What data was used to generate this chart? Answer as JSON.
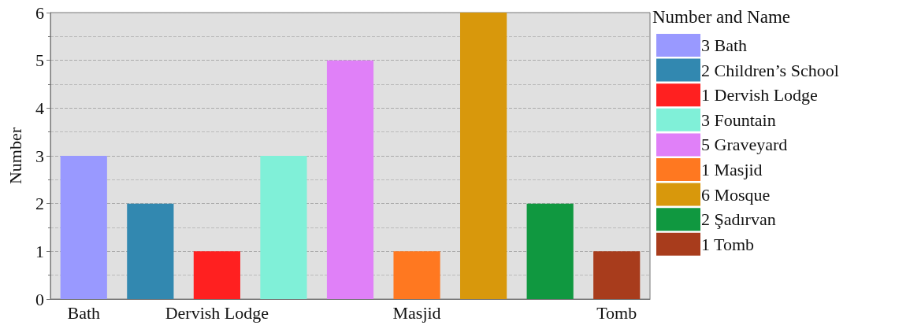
{
  "chart_data": {
    "type": "bar",
    "ylabel": "Number",
    "legend_title": "Number and Name",
    "categories": [
      "Bath",
      null,
      "Dervish Lodge",
      null,
      null,
      "Masjid",
      null,
      null,
      "Tomb"
    ],
    "series": [
      {
        "name": "3 Bath",
        "color": "#9999ff",
        "values": [
          3,
          null,
          null,
          null,
          null,
          null,
          null,
          null,
          null
        ]
      },
      {
        "name": "2 Children’s School",
        "color": "#3288b0",
        "values": [
          null,
          2,
          null,
          null,
          null,
          null,
          null,
          null,
          null
        ]
      },
      {
        "name": "1 Dervish Lodge",
        "color": "#ff2020",
        "values": [
          null,
          null,
          1,
          null,
          null,
          null,
          null,
          null,
          null
        ]
      },
      {
        "name": "3 Fountain",
        "color": "#80f0d8",
        "values": [
          null,
          null,
          null,
          3,
          null,
          null,
          null,
          null,
          null
        ]
      },
      {
        "name": "5 Graveyard",
        "color": "#e080f8",
        "values": [
          null,
          null,
          null,
          null,
          5,
          null,
          null,
          null,
          null
        ]
      },
      {
        "name": "1 Masjid",
        "color": "#ff7820",
        "values": [
          null,
          null,
          null,
          null,
          null,
          1,
          null,
          null,
          null
        ]
      },
      {
        "name": "6 Mosque",
        "color": "#d8980c",
        "values": [
          null,
          null,
          null,
          null,
          null,
          null,
          6,
          null,
          null
        ]
      },
      {
        "name": "2 Şadırvan",
        "color": "#109840",
        "values": [
          null,
          null,
          null,
          null,
          null,
          null,
          null,
          2,
          null
        ]
      },
      {
        "name": "1 Tomb",
        "color": "#a83c1c",
        "values": [
          null,
          null,
          null,
          null,
          null,
          null,
          null,
          null,
          1
        ]
      }
    ],
    "ylim": [
      0,
      6
    ],
    "yticks": [
      0,
      1,
      2,
      3,
      4,
      5,
      6
    ],
    "grid": "y",
    "legend": "right"
  }
}
